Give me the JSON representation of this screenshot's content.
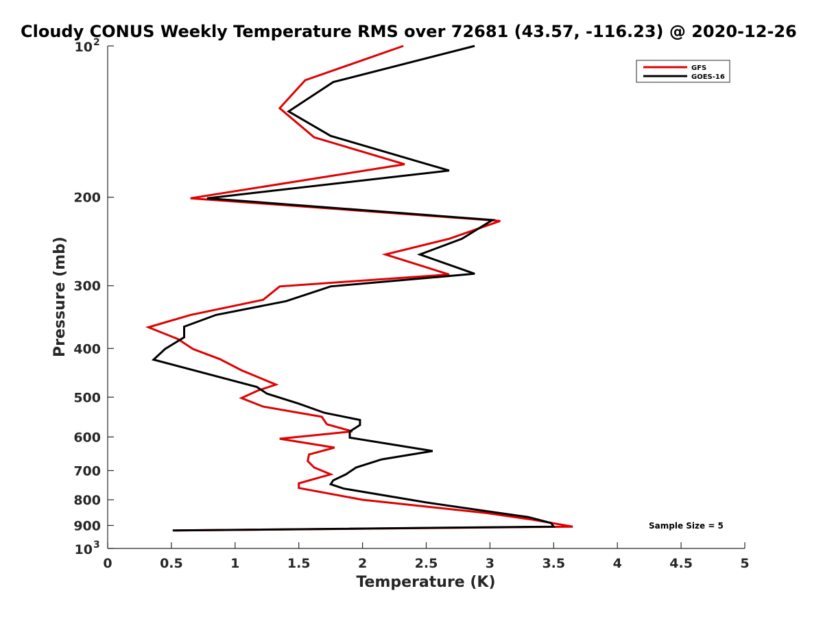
{
  "chart_data": {
    "type": "line",
    "title": "Cloudy CONUS Weekly Temperature RMS over 72681 (43.57, -116.23) @ 2020-12-26",
    "xlabel": "Temperature (K)",
    "ylabel": "Pressure (mb)",
    "xlim": [
      0,
      5
    ],
    "ylim": [
      100,
      1000
    ],
    "y_scale": "log",
    "y_reversed": true,
    "x_ticks": [
      "0",
      "0.5",
      "1",
      "1.5",
      "2",
      "2.5",
      "3",
      "3.5",
      "4",
      "4.5",
      "5"
    ],
    "y_ticks": [
      {
        "value": 100,
        "base": "10",
        "exp": "2"
      },
      {
        "value": 200,
        "label": "200"
      },
      {
        "value": 300,
        "label": "300"
      },
      {
        "value": 400,
        "label": "400"
      },
      {
        "value": 500,
        "label": "500"
      },
      {
        "value": 600,
        "label": "600"
      },
      {
        "value": 700,
        "label": "700"
      },
      {
        "value": 800,
        "label": "800"
      },
      {
        "value": 900,
        "label": "900"
      },
      {
        "value": 1000,
        "base": "10",
        "exp": "3"
      }
    ],
    "grid": false,
    "legend_position": "top-right",
    "annotation": "Sample Size = 5",
    "series": [
      {
        "name": "GFS",
        "color": "#e00000",
        "points": [
          [
            2.32,
            100
          ],
          [
            1.55,
            117
          ],
          [
            1.35,
            133
          ],
          [
            1.62,
            152
          ],
          [
            2.33,
            172
          ],
          [
            0.65,
            201
          ],
          [
            3.08,
            223
          ],
          [
            2.68,
            242
          ],
          [
            2.18,
            260
          ],
          [
            2.68,
            285
          ],
          [
            1.35,
            301
          ],
          [
            1.22,
            320
          ],
          [
            0.65,
            343
          ],
          [
            0.32,
            363
          ],
          [
            0.55,
            383
          ],
          [
            0.67,
            401
          ],
          [
            0.88,
            420
          ],
          [
            1.05,
            442
          ],
          [
            1.32,
            472
          ],
          [
            1.18,
            485
          ],
          [
            1.05,
            502
          ],
          [
            1.22,
            522
          ],
          [
            1.68,
            547
          ],
          [
            1.72,
            566
          ],
          [
            1.92,
            585
          ],
          [
            1.35,
            605
          ],
          [
            1.78,
            630
          ],
          [
            1.58,
            650
          ],
          [
            1.57,
            670
          ],
          [
            1.62,
            690
          ],
          [
            1.75,
            712
          ],
          [
            1.5,
            742
          ],
          [
            1.5,
            758
          ],
          [
            2.0,
            800
          ],
          [
            2.97,
            850
          ],
          [
            3.33,
            876
          ],
          [
            3.65,
            905
          ],
          [
            0.53,
            921
          ]
        ]
      },
      {
        "name": "GOES-16",
        "color": "#000000",
        "points": [
          [
            2.88,
            100
          ],
          [
            1.77,
            118
          ],
          [
            1.42,
            135
          ],
          [
            1.75,
            151
          ],
          [
            2.68,
            177
          ],
          [
            0.78,
            201
          ],
          [
            3.02,
            222
          ],
          [
            2.78,
            242
          ],
          [
            2.45,
            260
          ],
          [
            2.88,
            284
          ],
          [
            1.75,
            301
          ],
          [
            1.4,
            322
          ],
          [
            0.85,
            343
          ],
          [
            0.6,
            362
          ],
          [
            0.6,
            380
          ],
          [
            0.45,
            401
          ],
          [
            0.36,
            421
          ],
          [
            1.17,
            477
          ],
          [
            1.25,
            492
          ],
          [
            1.5,
            515
          ],
          [
            1.7,
            537
          ],
          [
            1.98,
            555
          ],
          [
            1.98,
            568
          ],
          [
            1.9,
            585
          ],
          [
            1.9,
            602
          ],
          [
            2.55,
            640
          ],
          [
            2.15,
            665
          ],
          [
            1.95,
            690
          ],
          [
            1.87,
            712
          ],
          [
            1.77,
            732
          ],
          [
            1.75,
            745
          ],
          [
            1.85,
            760
          ],
          [
            2.5,
            810
          ],
          [
            3.1,
            852
          ],
          [
            3.3,
            866
          ],
          [
            3.48,
            890
          ],
          [
            3.5,
            905
          ],
          [
            0.51,
            921
          ]
        ]
      }
    ]
  }
}
